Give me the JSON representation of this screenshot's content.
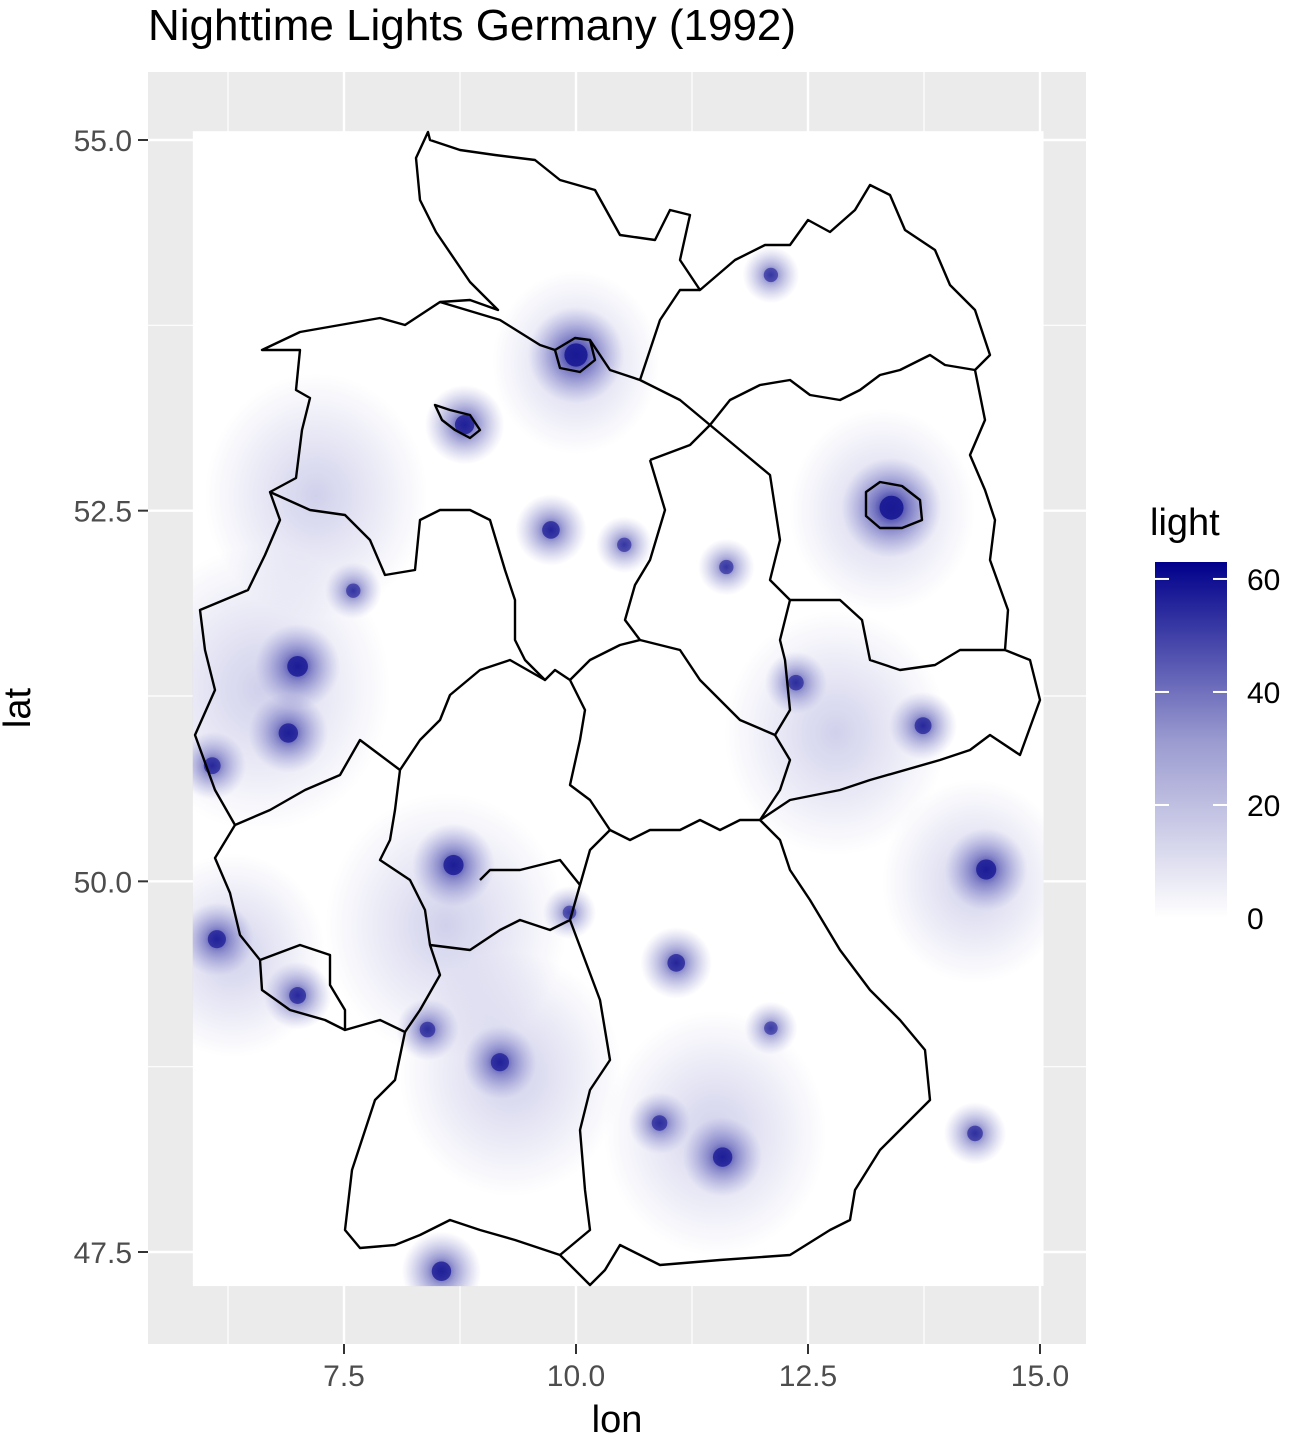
{
  "chart_data": {
    "type": "heatmap",
    "title": "Nighttime Lights Germany (1992)",
    "xlabel": "lon",
    "ylabel": "lat",
    "xlim": [
      5.87,
      15.04
    ],
    "ylim": [
      47.27,
      55.06
    ],
    "x_ticks": [
      7.5,
      10.0,
      12.5,
      15.0
    ],
    "x_tick_labels": [
      "7.5",
      "10.0",
      "12.5",
      "15.0"
    ],
    "y_ticks": [
      47.5,
      50.0,
      52.5,
      55.0
    ],
    "y_tick_labels": [
      "47.5",
      "50.0",
      "52.5",
      "55.0"
    ],
    "legend": {
      "title": "light",
      "placement": "right",
      "range": [
        0,
        63
      ],
      "ticks": [
        0,
        20,
        40,
        60
      ],
      "tick_labels": [
        "0",
        "20",
        "40",
        "60"
      ],
      "low_color": "#ffffff",
      "high_color": "#00008b"
    },
    "bright_spots": [
      {
        "lon": 13.4,
        "lat": 52.52,
        "light": 63
      },
      {
        "lon": 10.0,
        "lat": 53.55,
        "light": 60
      },
      {
        "lon": 8.8,
        "lat": 53.08,
        "light": 45
      },
      {
        "lon": 9.73,
        "lat": 52.37,
        "light": 38
      },
      {
        "lon": 7.0,
        "lat": 51.45,
        "light": 50
      },
      {
        "lon": 6.9,
        "lat": 51.0,
        "light": 45
      },
      {
        "lon": 8.68,
        "lat": 50.11,
        "light": 48
      },
      {
        "lon": 9.18,
        "lat": 48.78,
        "light": 40
      },
      {
        "lon": 11.58,
        "lat": 48.14,
        "light": 45
      },
      {
        "lon": 11.08,
        "lat": 49.45,
        "light": 38
      },
      {
        "lon": 12.37,
        "lat": 51.34,
        "light": 30
      },
      {
        "lon": 13.74,
        "lat": 51.05,
        "light": 35
      },
      {
        "lon": 14.42,
        "lat": 50.08,
        "light": 48
      },
      {
        "lon": 14.3,
        "lat": 48.3,
        "light": 30
      },
      {
        "lon": 8.55,
        "lat": 47.37,
        "light": 45
      },
      {
        "lon": 6.13,
        "lat": 49.61,
        "light": 40
      },
      {
        "lon": 10.9,
        "lat": 48.37,
        "light": 30
      },
      {
        "lon": 7.6,
        "lat": 51.96,
        "light": 25
      },
      {
        "lon": 9.93,
        "lat": 49.79,
        "light": 22
      },
      {
        "lon": 8.4,
        "lat": 49.0,
        "light": 30
      },
      {
        "lon": 7.0,
        "lat": 49.23,
        "light": 35
      },
      {
        "lon": 12.1,
        "lat": 54.09,
        "light": 25
      },
      {
        "lon": 11.62,
        "lat": 52.12,
        "light": 25
      },
      {
        "lon": 10.52,
        "lat": 52.27,
        "light": 25
      },
      {
        "lon": 12.1,
        "lat": 49.01,
        "light": 22
      },
      {
        "lon": 6.08,
        "lat": 50.78,
        "light": 35
      }
    ]
  }
}
